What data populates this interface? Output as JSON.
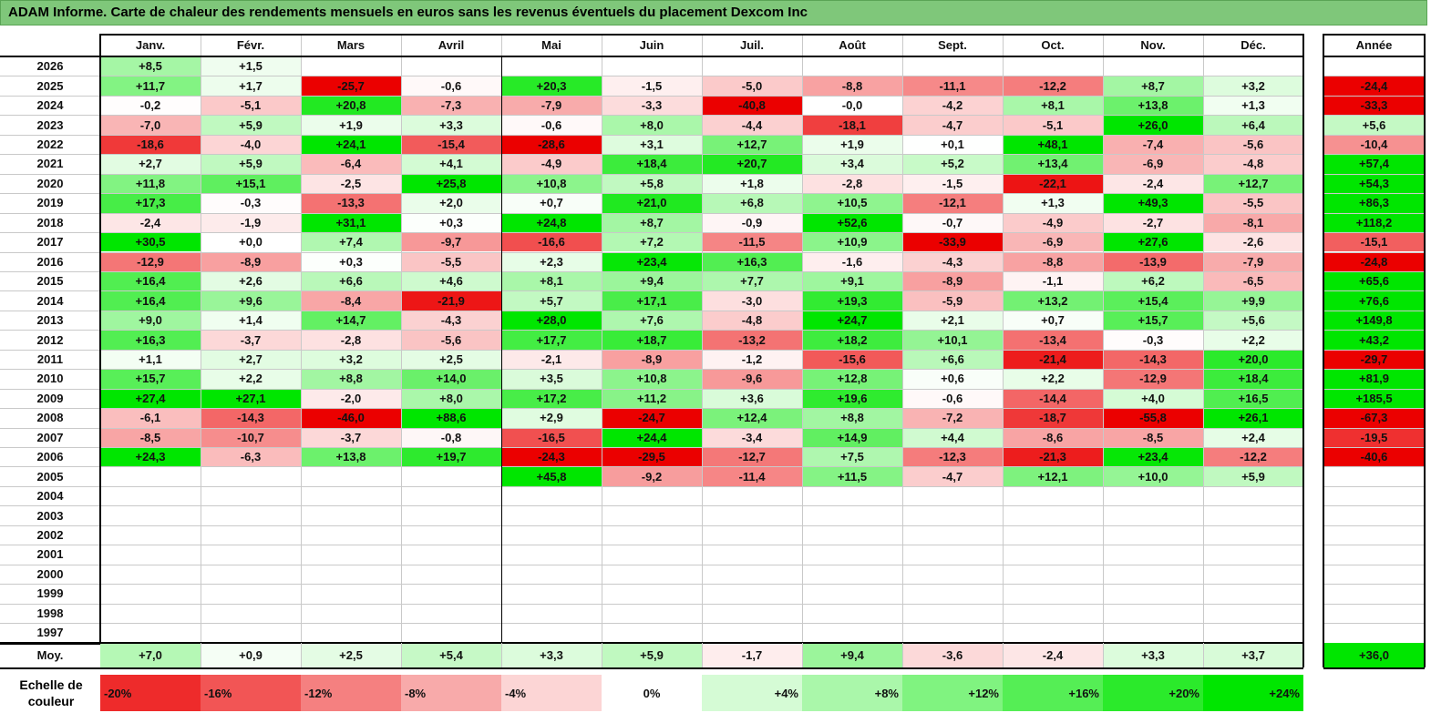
{
  "title": "ADAM Informe. Carte de chaleur des rendements mensuels en euros sans les revenus éventuels du placement Dexcom Inc",
  "chart_data": {
    "type": "heatmap",
    "columns": [
      "Janv.",
      "Févr.",
      "Mars",
      "Avril",
      "Mai",
      "Juin",
      "Juil.",
      "Août",
      "Sept.",
      "Oct.",
      "Nov.",
      "Déc."
    ],
    "year_header": "Année",
    "avg_label": "Moy.",
    "rows": [
      {
        "year": "2026",
        "values": [
          "+8,5",
          "+1,5",
          "",
          "",
          "",
          "",
          "",
          "",
          "",
          "",
          "",
          ""
        ],
        "annual": ""
      },
      {
        "year": "2025",
        "values": [
          "+11,7",
          "+1,7",
          "-25,7",
          "-0,6",
          "+20,3",
          "-1,5",
          "-5,0",
          "-8,8",
          "-11,1",
          "-12,2",
          "+8,7",
          "+3,2"
        ],
        "annual": "-24,4"
      },
      {
        "year": "2024",
        "values": [
          "-0,2",
          "-5,1",
          "+20,8",
          "-7,3",
          "-7,9",
          "-3,3",
          "-40,8",
          "-0,0",
          "-4,2",
          "+8,1",
          "+13,8",
          "+1,3"
        ],
        "annual": "-33,3"
      },
      {
        "year": "2023",
        "values": [
          "-7,0",
          "+5,9",
          "+1,9",
          "+3,3",
          "-0,6",
          "+8,0",
          "-4,4",
          "-18,1",
          "-4,7",
          "-5,1",
          "+26,0",
          "+6,4"
        ],
        "annual": "+5,6"
      },
      {
        "year": "2022",
        "values": [
          "-18,6",
          "-4,0",
          "+24,1",
          "-15,4",
          "-28,6",
          "+3,1",
          "+12,7",
          "+1,9",
          "+0,1",
          "+48,1",
          "-7,4",
          "-5,6"
        ],
        "annual": "-10,4"
      },
      {
        "year": "2021",
        "values": [
          "+2,7",
          "+5,9",
          "-6,4",
          "+4,1",
          "-4,9",
          "+18,4",
          "+20,7",
          "+3,4",
          "+5,2",
          "+13,4",
          "-6,9",
          "-4,8"
        ],
        "annual": "+57,4"
      },
      {
        "year": "2020",
        "values": [
          "+11,8",
          "+15,1",
          "-2,5",
          "+25,8",
          "+10,8",
          "+5,8",
          "+1,8",
          "-2,8",
          "-1,5",
          "-22,1",
          "-2,4",
          "+12,7"
        ],
        "annual": "+54,3"
      },
      {
        "year": "2019",
        "values": [
          "+17,3",
          "-0,3",
          "-13,3",
          "+2,0",
          "+0,7",
          "+21,0",
          "+6,8",
          "+10,5",
          "-12,1",
          "+1,3",
          "+49,3",
          "-5,5"
        ],
        "annual": "+86,3"
      },
      {
        "year": "2018",
        "values": [
          "-2,4",
          "-1,9",
          "+31,1",
          "+0,3",
          "+24,8",
          "+8,7",
          "-0,9",
          "+52,6",
          "-0,7",
          "-4,9",
          "-2,7",
          "-8,1"
        ],
        "annual": "+118,2"
      },
      {
        "year": "2017",
        "values": [
          "+30,5",
          "+0,0",
          "+7,4",
          "-9,7",
          "-16,6",
          "+7,2",
          "-11,5",
          "+10,9",
          "-33,9",
          "-6,9",
          "+27,6",
          "-2,6"
        ],
        "annual": "-15,1"
      },
      {
        "year": "2016",
        "values": [
          "-12,9",
          "-8,9",
          "+0,3",
          "-5,5",
          "+2,3",
          "+23,4",
          "+16,3",
          "-1,6",
          "-4,3",
          "-8,8",
          "-13,9",
          "-7,9"
        ],
        "annual": "-24,8"
      },
      {
        "year": "2015",
        "values": [
          "+16,4",
          "+2,6",
          "+6,6",
          "+4,6",
          "+8,1",
          "+9,4",
          "+7,7",
          "+9,1",
          "-8,9",
          "-1,1",
          "+6,2",
          "-6,5"
        ],
        "annual": "+65,6"
      },
      {
        "year": "2014",
        "values": [
          "+16,4",
          "+9,6",
          "-8,4",
          "-21,9",
          "+5,7",
          "+17,1",
          "-3,0",
          "+19,3",
          "-5,9",
          "+13,2",
          "+15,4",
          "+9,9"
        ],
        "annual": "+76,6"
      },
      {
        "year": "2013",
        "values": [
          "+9,0",
          "+1,4",
          "+14,7",
          "-4,3",
          "+28,0",
          "+7,6",
          "-4,8",
          "+24,7",
          "+2,1",
          "+0,7",
          "+15,7",
          "+5,6"
        ],
        "annual": "+149,8"
      },
      {
        "year": "2012",
        "values": [
          "+16,3",
          "-3,7",
          "-2,8",
          "-5,6",
          "+17,7",
          "+18,7",
          "-13,2",
          "+18,2",
          "+10,1",
          "-13,4",
          "-0,3",
          "+2,2"
        ],
        "annual": "+43,2"
      },
      {
        "year": "2011",
        "values": [
          "+1,1",
          "+2,7",
          "+3,2",
          "+2,5",
          "-2,1",
          "-8,9",
          "-1,2",
          "-15,6",
          "+6,6",
          "-21,4",
          "-14,3",
          "+20,0"
        ],
        "annual": "-29,7"
      },
      {
        "year": "2010",
        "values": [
          "+15,7",
          "+2,2",
          "+8,8",
          "+14,0",
          "+3,5",
          "+10,8",
          "-9,6",
          "+12,8",
          "+0,6",
          "+2,2",
          "-12,9",
          "+18,4"
        ],
        "annual": "+81,9"
      },
      {
        "year": "2009",
        "values": [
          "+27,4",
          "+27,1",
          "-2,0",
          "+8,0",
          "+17,2",
          "+11,2",
          "+3,6",
          "+19,6",
          "-0,6",
          "-14,4",
          "+4,0",
          "+16,5"
        ],
        "annual": "+185,5"
      },
      {
        "year": "2008",
        "values": [
          "-6,1",
          "-14,3",
          "-46,0",
          "+88,6",
          "+2,9",
          "-24,7",
          "+12,4",
          "+8,8",
          "-7,2",
          "-18,7",
          "-55,8",
          "+26,1"
        ],
        "annual": "-67,3"
      },
      {
        "year": "2007",
        "values": [
          "-8,5",
          "-10,7",
          "-3,7",
          "-0,8",
          "-16,5",
          "+24,4",
          "-3,4",
          "+14,9",
          "+4,4",
          "-8,6",
          "-8,5",
          "+2,4"
        ],
        "annual": "-19,5"
      },
      {
        "year": "2006",
        "values": [
          "+24,3",
          "-6,3",
          "+13,8",
          "+19,7",
          "-24,3",
          "-29,5",
          "-12,7",
          "+7,5",
          "-12,3",
          "-21,3",
          "+23,4",
          "-12,2"
        ],
        "annual": "-40,6"
      },
      {
        "year": "2005",
        "values": [
          "",
          "",
          "",
          "",
          "+45,8",
          "-9,2",
          "-11,4",
          "+11,5",
          "-4,7",
          "+12,1",
          "+10,0",
          "+5,9"
        ],
        "annual": ""
      },
      {
        "year": "2004",
        "values": [
          "",
          "",
          "",
          "",
          "",
          "",
          "",
          "",
          "",
          "",
          "",
          ""
        ],
        "annual": ""
      },
      {
        "year": "2003",
        "values": [
          "",
          "",
          "",
          "",
          "",
          "",
          "",
          "",
          "",
          "",
          "",
          ""
        ],
        "annual": ""
      },
      {
        "year": "2002",
        "values": [
          "",
          "",
          "",
          "",
          "",
          "",
          "",
          "",
          "",
          "",
          "",
          ""
        ],
        "annual": ""
      },
      {
        "year": "2001",
        "values": [
          "",
          "",
          "",
          "",
          "",
          "",
          "",
          "",
          "",
          "",
          "",
          ""
        ],
        "annual": ""
      },
      {
        "year": "2000",
        "values": [
          "",
          "",
          "",
          "",
          "",
          "",
          "",
          "",
          "",
          "",
          "",
          ""
        ],
        "annual": ""
      },
      {
        "year": "1999",
        "values": [
          "",
          "",
          "",
          "",
          "",
          "",
          "",
          "",
          "",
          "",
          "",
          ""
        ],
        "annual": ""
      },
      {
        "year": "1998",
        "values": [
          "",
          "",
          "",
          "",
          "",
          "",
          "",
          "",
          "",
          "",
          "",
          ""
        ],
        "annual": ""
      },
      {
        "year": "1997",
        "values": [
          "",
          "",
          "",
          "",
          "",
          "",
          "",
          "",
          "",
          "",
          "",
          ""
        ],
        "annual": ""
      }
    ],
    "averages": [
      "+7,0",
      "+0,9",
      "+2,5",
      "+5,4",
      "+3,3",
      "+5,9",
      "-1,7",
      "+9,4",
      "-3,6",
      "-2,4",
      "+3,3",
      "+3,7"
    ],
    "average_annual": "+36,0",
    "scale_label": "Echelle de couleur",
    "scale": [
      "-20%",
      "-16%",
      "-12%",
      "-8%",
      "-4%",
      "0%",
      "+4%",
      "+8%",
      "+12%",
      "+16%",
      "+20%",
      "+24%"
    ],
    "scale_steps": [
      -20,
      -16,
      -12,
      -8,
      -4,
      0,
      4,
      8,
      12,
      16,
      20,
      24
    ]
  }
}
